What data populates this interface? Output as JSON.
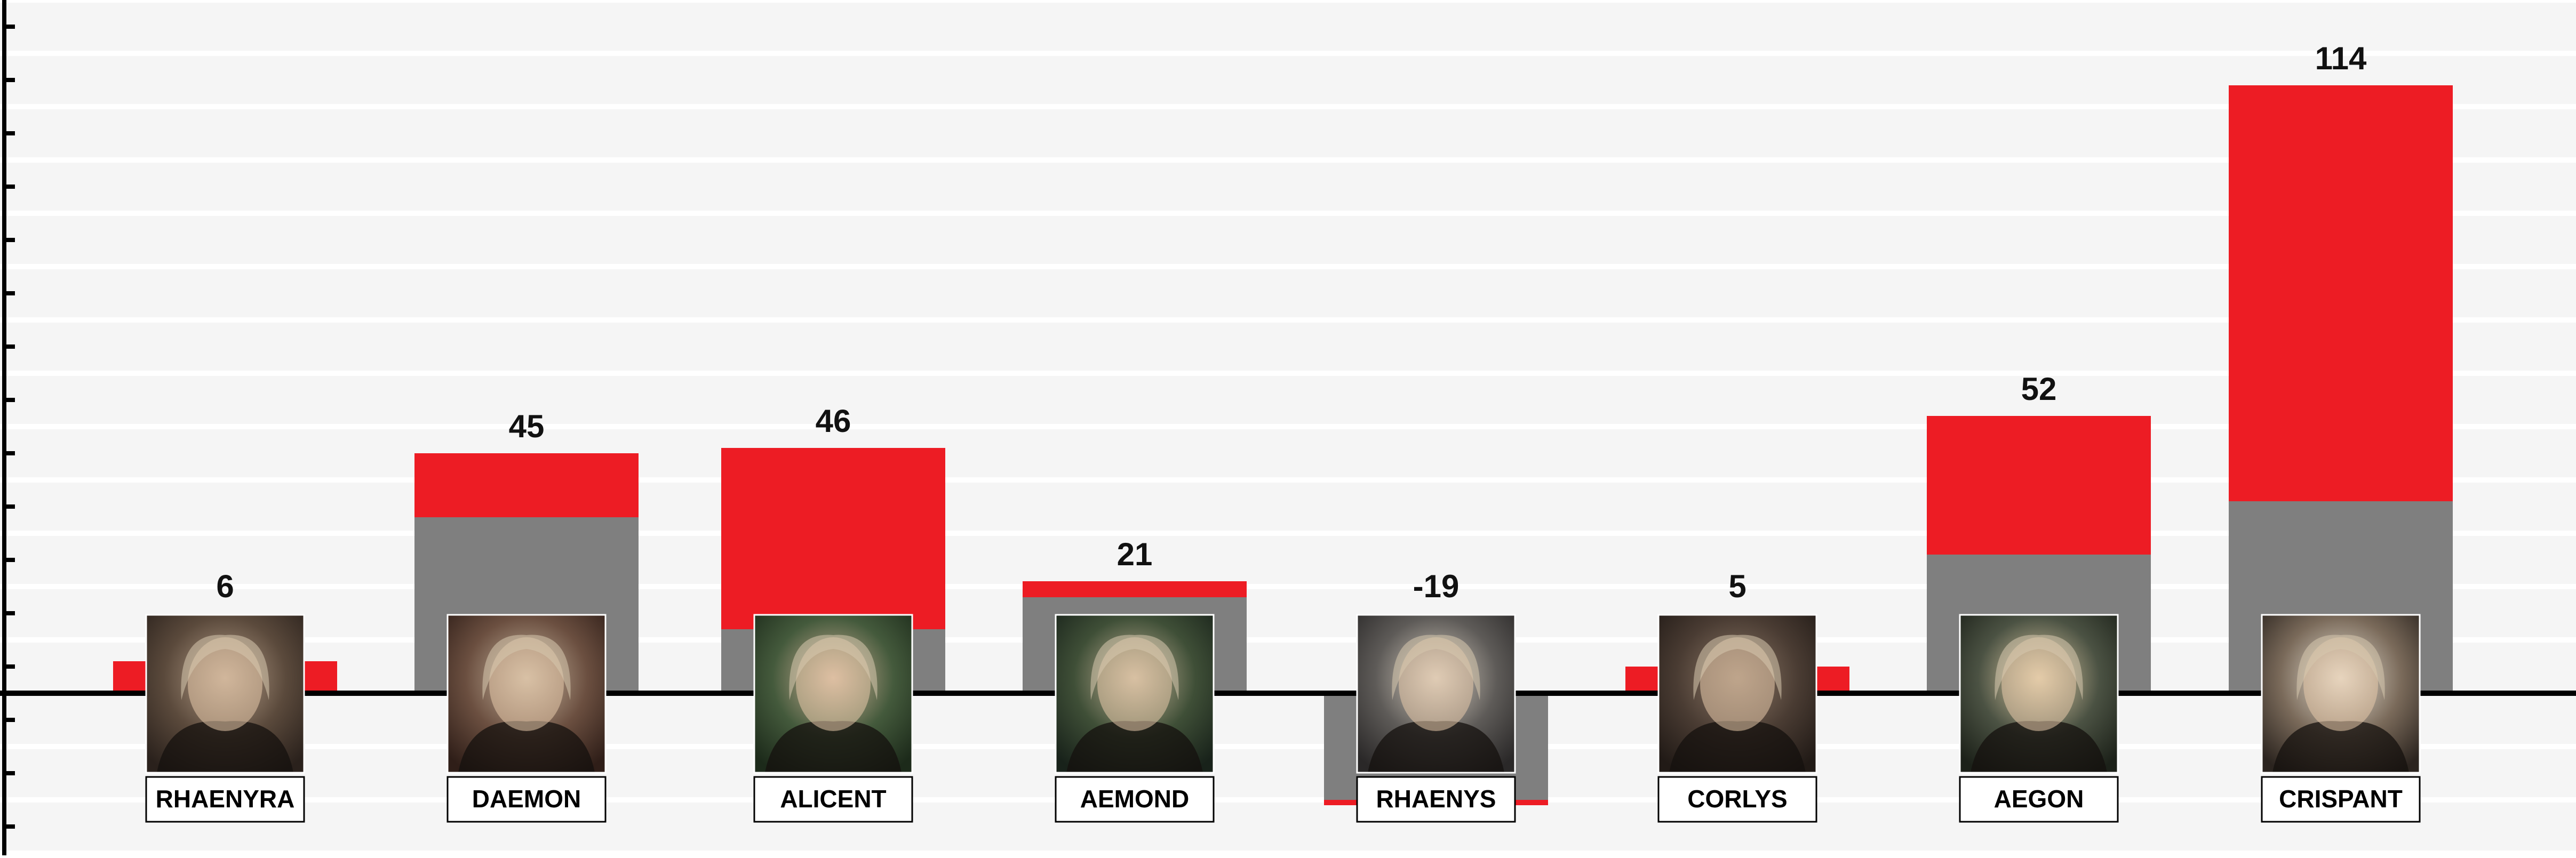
{
  "chart_data": {
    "type": "bar",
    "categories": [
      "RHAENYRA",
      "DAEMON",
      "ALICENT",
      "AEMOND",
      "RHAENYS",
      "CORLYS",
      "AEGON",
      "CRISPANT"
    ],
    "series": [
      {
        "values": [
          0,
          33,
          12,
          18,
          -20,
          0,
          26,
          36
        ]
      },
      {
        "values": [
          6,
          12,
          34,
          3,
          -1,
          5,
          26,
          78
        ]
      }
    ],
    "totals": [
      6,
      45,
      46,
      21,
      -19,
      5,
      52,
      114
    ],
    "total_labels": [
      "6",
      "45",
      "46",
      "21",
      "-19",
      "5",
      "52",
      "114"
    ],
    "ylim": [
      -30,
      130
    ],
    "grid": true,
    "colors": {
      "base": "#7f7f7f",
      "change": "#ed1c24",
      "background": "#f5f5f5",
      "gridline": "#ffffff",
      "axis": "#000000"
    },
    "portrait_icons": [
      "rhaenyra-portrait-icon",
      "daemon-portrait-icon",
      "alicent-portrait-icon",
      "aemond-portrait-icon",
      "rhaenys-portrait-icon",
      "corlys-portrait-icon",
      "aegon-portrait-icon",
      "crispant-portrait-icon"
    ]
  }
}
